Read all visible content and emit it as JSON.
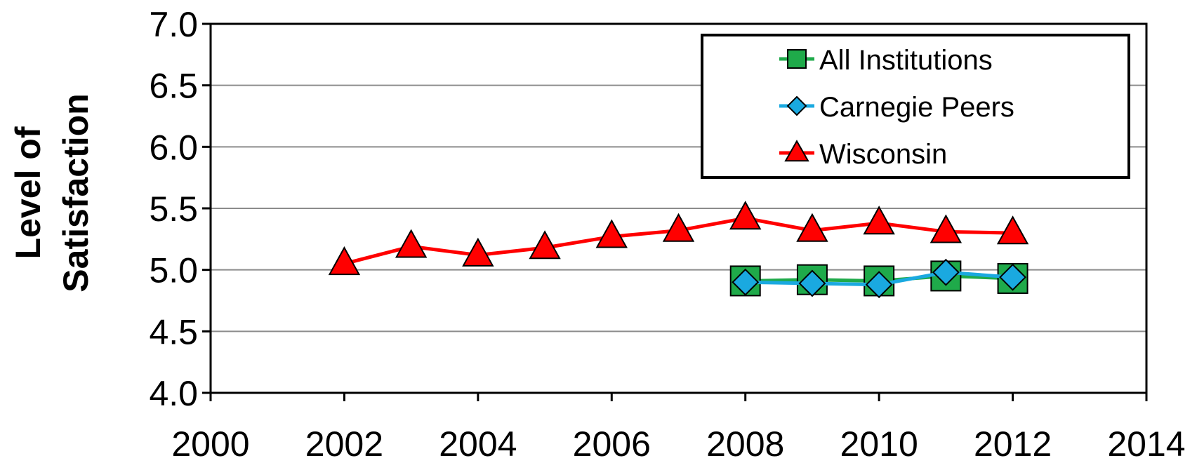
{
  "chart_data": {
    "type": "line",
    "title": "",
    "xlabel": "",
    "ylabel_lines": [
      "Level of",
      "Satisfaction"
    ],
    "xlim": [
      2000,
      2014
    ],
    "ylim": [
      4.0,
      7.0
    ],
    "x_ticks": [
      "2000",
      "2002",
      "2004",
      "2006",
      "2008",
      "2010",
      "2012",
      "2014"
    ],
    "y_ticks": [
      "4.0",
      "4.5",
      "5.0",
      "5.5",
      "6.0",
      "6.5",
      "7.0"
    ],
    "grid": "horizontal",
    "legend_position": "top-right",
    "series": [
      {
        "name": "All Institutions",
        "marker": "square",
        "color": "#1faa4a",
        "marker_fill": "#1faa4a",
        "x": [
          2008,
          2009,
          2010,
          2011,
          2012
        ],
        "y": [
          4.91,
          4.92,
          4.91,
          4.95,
          4.93
        ]
      },
      {
        "name": "Carnegie Peers",
        "marker": "diamond",
        "color": "#1aa9e0",
        "marker_fill": "#1aa9e0",
        "x": [
          2008,
          2009,
          2010,
          2011,
          2012
        ],
        "y": [
          4.9,
          4.89,
          4.88,
          4.98,
          4.94
        ]
      },
      {
        "name": "Wisconsin",
        "marker": "triangle",
        "color": "#ff0000",
        "marker_fill": "#ff0000",
        "x": [
          2002,
          2003,
          2004,
          2005,
          2006,
          2007,
          2008,
          2009,
          2010,
          2011,
          2012
        ],
        "y": [
          5.05,
          5.19,
          5.12,
          5.18,
          5.27,
          5.32,
          5.42,
          5.32,
          5.38,
          5.31,
          5.3
        ]
      }
    ]
  }
}
